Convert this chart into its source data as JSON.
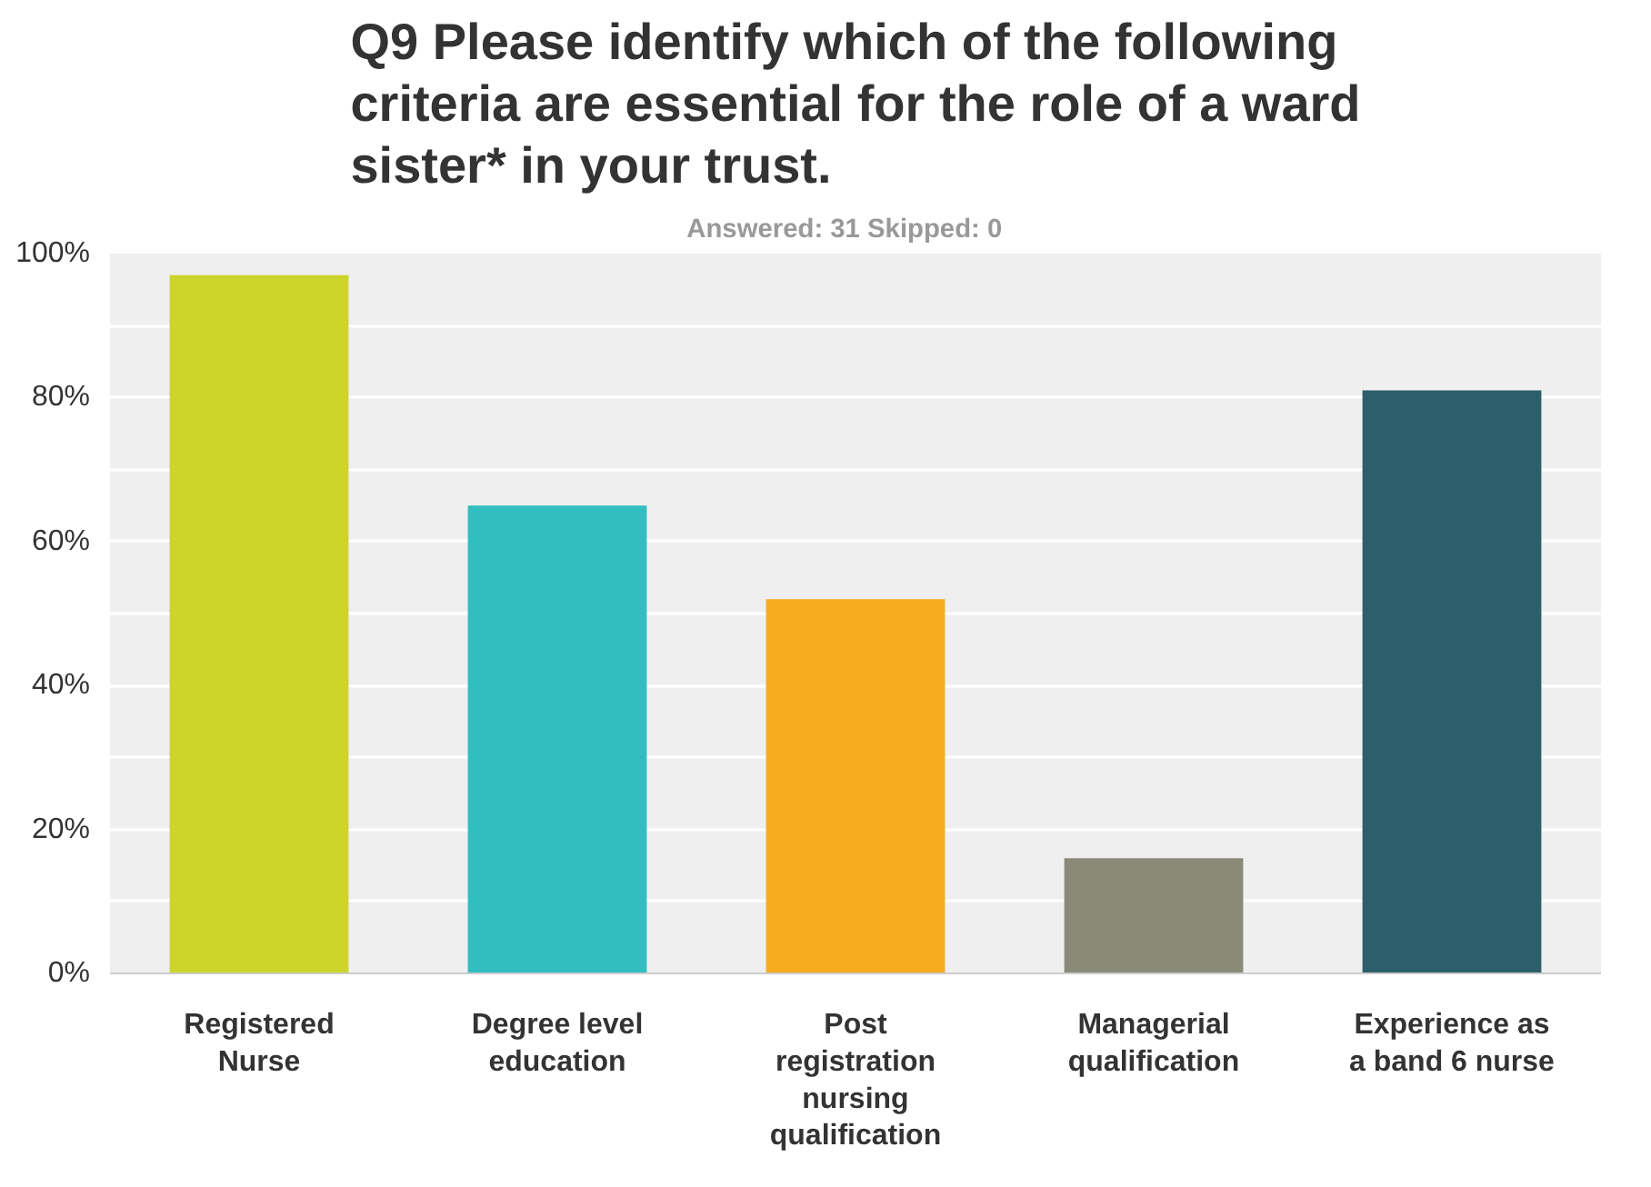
{
  "chart_data": {
    "type": "bar",
    "title": "Q9 Please identify which of the following criteria are essential for the role of a ward sister* in your trust.",
    "subtitle": "Answered: 31    Skipped: 0",
    "categories": [
      "Registered Nurse",
      "Degree level education",
      "Post registration nursing qualification",
      "Managerial qualification",
      "Experience as a band 6 nurse"
    ],
    "values": [
      97,
      65,
      52,
      16,
      81
    ],
    "colors": [
      "#cdd42a",
      "#32bdc0",
      "#f5ac1e",
      "#8a8a78",
      "#2c5f6b"
    ],
    "ylim": [
      0,
      100
    ],
    "yticks": [
      {
        "value": 0,
        "label": "0%"
      },
      {
        "value": 10,
        "label": null
      },
      {
        "value": 20,
        "label": "20%"
      },
      {
        "value": 30,
        "label": null
      },
      {
        "value": 40,
        "label": "40%"
      },
      {
        "value": 50,
        "label": null
      },
      {
        "value": 60,
        "label": "60%"
      },
      {
        "value": 70,
        "label": null
      },
      {
        "value": 80,
        "label": "80%"
      },
      {
        "value": 90,
        "label": null
      },
      {
        "value": 100,
        "label": "100%"
      }
    ],
    "grid": "y"
  }
}
